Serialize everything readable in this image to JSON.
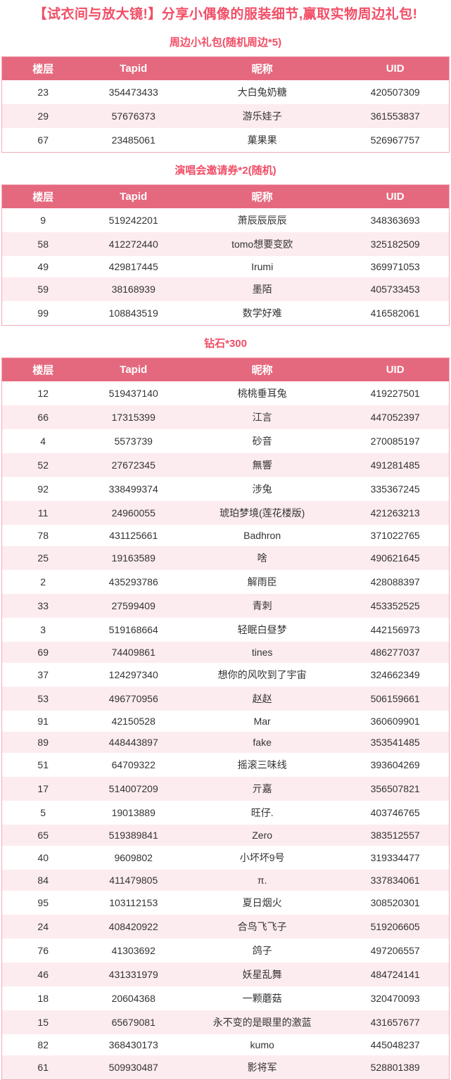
{
  "page": {
    "title": "【试衣间与放大镜!】分享小偶像的服装细节,赢取实物周边礼包!"
  },
  "theme": {
    "accent": "#f14e66",
    "header_bg": "#e5697e",
    "header_text": "#ffffff",
    "row_alt": "#fdecef",
    "table_border": "#f2aab6",
    "text": "#333333"
  },
  "sections": [
    {
      "heading": "周边小礼包(随机周边*5)",
      "columns": [
        "楼层",
        "Tapid",
        "昵称",
        "UID"
      ],
      "rows": [
        [
          "23",
          "354473433",
          "大白兔奶糖",
          "420507309"
        ],
        [
          "29",
          "57676373",
          "游乐娃子",
          "361553837"
        ],
        [
          "67",
          "23485061",
          "菓果果",
          "526967757"
        ]
      ]
    },
    {
      "heading": "演唱会邀请券*2(随机)",
      "columns": [
        "楼层",
        "Tapid",
        "昵称",
        "UID"
      ],
      "rows": [
        [
          "9",
          "519242201",
          "萧辰辰辰辰",
          "348363693"
        ],
        [
          "58",
          "412272440",
          "tomo想要变欧",
          "325182509"
        ],
        [
          "49",
          "429817445",
          "Irumi",
          "369971053"
        ],
        [
          "59",
          "38168939",
          "墨陌",
          "405733453"
        ],
        [
          "99",
          "108843519",
          "数学好难",
          "416582061"
        ]
      ]
    },
    {
      "heading": "钻石*300",
      "columns": [
        "楼层",
        "Tapid",
        "昵称",
        "UID"
      ],
      "rows": [
        [
          "12",
          "519437140",
          "桃桃垂耳兔",
          "419227501"
        ],
        [
          "66",
          "17315399",
          "江言",
          "447052397"
        ],
        [
          "4",
          "5573739",
          "砂音",
          "270085197"
        ],
        [
          "52",
          "27672345",
          "無響",
          "491281485"
        ],
        [
          "92",
          "338499374",
          "涉兔",
          "335367245"
        ],
        [
          "11",
          "24960055",
          "琥珀梦境(莲花楼版)",
          "421263213"
        ],
        [
          "78",
          "431125661",
          "Badhron",
          "371022765"
        ],
        [
          "25",
          "19163589",
          "啥",
          "490621645"
        ],
        [
          "2",
          "435293786",
          "解雨臣",
          "428088397"
        ],
        [
          "33",
          "27599409",
          "青刺",
          "453352525"
        ],
        [
          "3",
          "519168664",
          "轻眠白昼梦",
          "442156973"
        ],
        [
          "69",
          "74409861",
          "tines",
          "486277037"
        ],
        [
          "37",
          "124297340",
          "想你的风吹到了宇宙",
          "324662349"
        ],
        [
          "53",
          "496770956",
          "赵赵",
          "506159661"
        ],
        [
          "91",
          "42150528",
          "Mar",
          "360609901"
        ],
        [
          "89",
          "448443897",
          "fake",
          "353541485"
        ],
        [
          "51",
          "64709322",
          "摇滚三味线",
          "393604269"
        ],
        [
          "17",
          "514007209",
          "亓嘉",
          "356507821"
        ],
        [
          "5",
          "19013889",
          "旺仔.",
          "403746765"
        ],
        [
          "65",
          "519389841",
          "Zero",
          "383512557"
        ],
        [
          "40",
          "9609802",
          "小坏坏9号",
          "319334477"
        ],
        [
          "84",
          "411479805",
          "π.",
          "337834061"
        ],
        [
          "95",
          "103112153",
          "夏日烟火",
          "308520301"
        ],
        [
          "24",
          "408420922",
          "合鸟飞飞子",
          "519206605"
        ],
        [
          "76",
          "41303692",
          "鸽子",
          "497206557"
        ],
        [
          "46",
          "431331979",
          "妖星乱舞",
          "484724141"
        ],
        [
          "18",
          "20604368",
          "一颗蘑菇",
          "320470093"
        ],
        [
          "15",
          "65679081",
          "永不变的是眼里的激蓝",
          "431657677"
        ],
        [
          "82",
          "368430173",
          "kumo",
          "445048237"
        ],
        [
          "61",
          "509930487",
          "影将军",
          "528801389"
        ]
      ]
    }
  ]
}
